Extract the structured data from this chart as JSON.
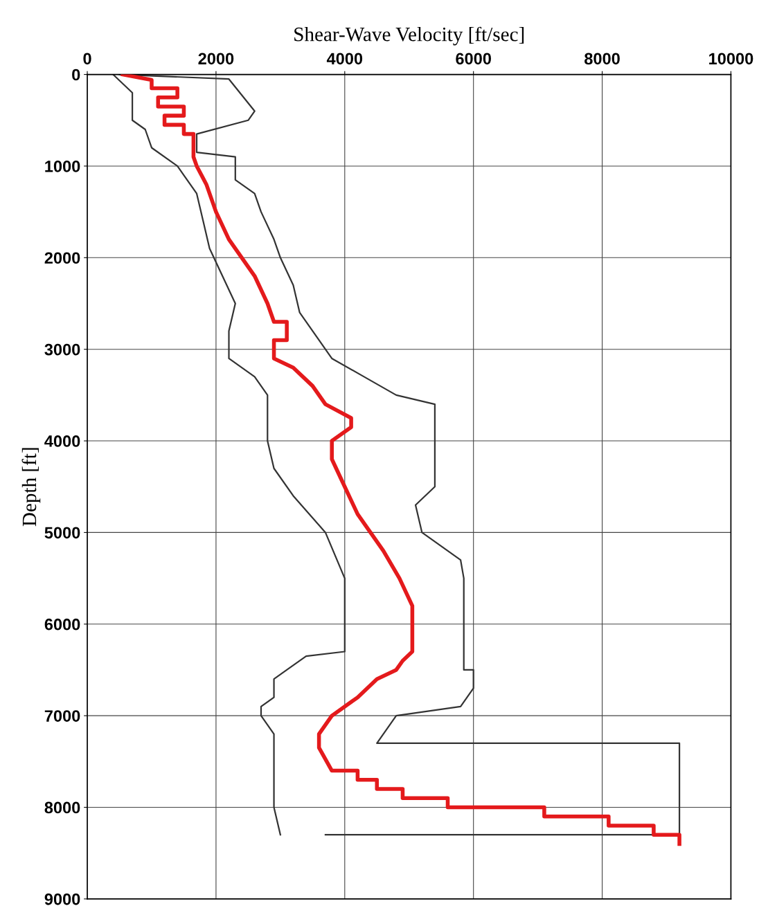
{
  "chart_data": {
    "type": "line",
    "xlabel": "Shear-Wave Velocity [ft/sec]",
    "ylabel": "Depth [ft]",
    "xlim": [
      0,
      10000
    ],
    "xticks": [
      0,
      2000,
      4000,
      6000,
      8000,
      10000
    ],
    "ylim": [
      9000,
      0
    ],
    "yticks": [
      0,
      1000,
      2000,
      3000,
      4000,
      5000,
      6000,
      7000,
      8000,
      9000
    ],
    "grid": true,
    "series": [
      {
        "color": "#333333",
        "x": [
          500,
          2200,
          2600,
          2500,
          1700,
          1700,
          2300,
          2300,
          2600,
          2700,
          2900,
          3000,
          3200,
          3300,
          3600,
          3800,
          4300,
          4800,
          5400,
          5400,
          5100,
          5200,
          5800,
          5850,
          5850,
          6000,
          6000,
          5800,
          4800,
          4500,
          9200,
          9200,
          3700
        ],
        "values": [
          0,
          50,
          400,
          500,
          650,
          850,
          900,
          1150,
          1300,
          1500,
          1800,
          2000,
          2300,
          2600,
          2900,
          3100,
          3300,
          3500,
          3600,
          4500,
          4700,
          5000,
          5300,
          5500,
          6500,
          6500,
          6700,
          6900,
          7000,
          7300,
          7300,
          8300,
          8300
        ]
      },
      {
        "color": "#333333",
        "x": [
          400,
          700,
          700,
          900,
          1000,
          1400,
          1700,
          1800,
          1900,
          2100,
          2300,
          2200,
          2200,
          2600,
          2800,
          2800,
          2900,
          3200,
          3700,
          4000,
          4000,
          3400,
          3100,
          2900,
          2900,
          2700,
          2700,
          2900,
          2900,
          3000
        ],
        "values": [
          0,
          200,
          500,
          600,
          800,
          1000,
          1300,
          1600,
          1900,
          2200,
          2500,
          2800,
          3100,
          3300,
          3500,
          4000,
          4300,
          4600,
          5000,
          5500,
          6300,
          6350,
          6500,
          6600,
          6800,
          6900,
          7000,
          7200,
          8000,
          8300
        ]
      },
      {
        "color": "#e41a1c",
        "x": [
          550,
          1000,
          1000,
          1400,
          1400,
          1100,
          1100,
          1500,
          1500,
          1200,
          1200,
          1500,
          1500,
          1650,
          1650,
          1700,
          1850,
          2000,
          2200,
          2400,
          2600,
          2800,
          2900,
          3100,
          3100,
          2900,
          2900,
          3200,
          3500,
          3700,
          4100,
          4100,
          3800,
          3800,
          4000,
          4200,
          4400,
          4600,
          4850,
          5050,
          5050,
          4900,
          4800,
          4500,
          4200,
          3800,
          3600,
          3600,
          3800,
          4200,
          4200,
          4500,
          4500,
          4900,
          4900,
          5600,
          5600,
          7100,
          7100,
          8100,
          8100,
          8800,
          8800,
          9200,
          9200
        ],
        "values": [
          0,
          60,
          150,
          150,
          250,
          250,
          350,
          350,
          450,
          450,
          550,
          550,
          650,
          650,
          900,
          1000,
          1200,
          1500,
          1800,
          2000,
          2200,
          2500,
          2700,
          2700,
          2900,
          2900,
          3100,
          3200,
          3400,
          3600,
          3750,
          3850,
          4000,
          4200,
          4500,
          4800,
          5000,
          5200,
          5500,
          5800,
          6300,
          6400,
          6500,
          6600,
          6800,
          7000,
          7200,
          7350,
          7600,
          7600,
          7700,
          7700,
          7800,
          7800,
          7900,
          7900,
          8000,
          8000,
          8100,
          8100,
          8200,
          8200,
          8300,
          8300,
          8400
        ]
      }
    ]
  }
}
